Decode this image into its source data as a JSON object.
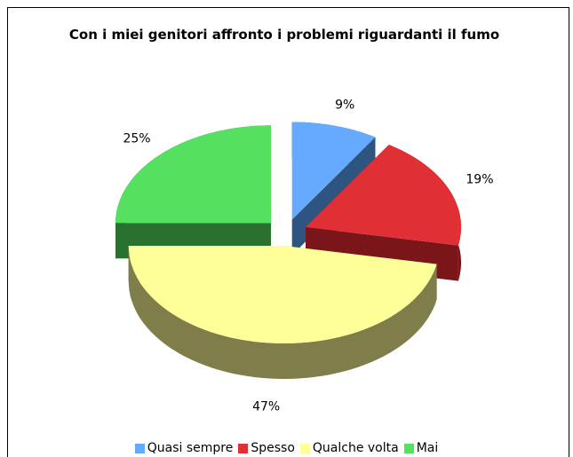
{
  "chart_data": {
    "type": "pie",
    "title": "Con i miei genitori affronto i problemi riguardanti il fumo",
    "categories": [
      "Quasi sempre",
      "Spesso",
      "Qualche volta",
      "Mai"
    ],
    "values": [
      9,
      19,
      47,
      25
    ],
    "value_labels": [
      "9%",
      "19%",
      "47%",
      "25%"
    ],
    "colors": [
      "#66aaff",
      "#e03035",
      "#ffff99",
      "#55e060"
    ],
    "side_colors": [
      "#2e5580",
      "#7a1519",
      "#7f7d4a",
      "#2a7030"
    ],
    "legend": "bottom"
  }
}
